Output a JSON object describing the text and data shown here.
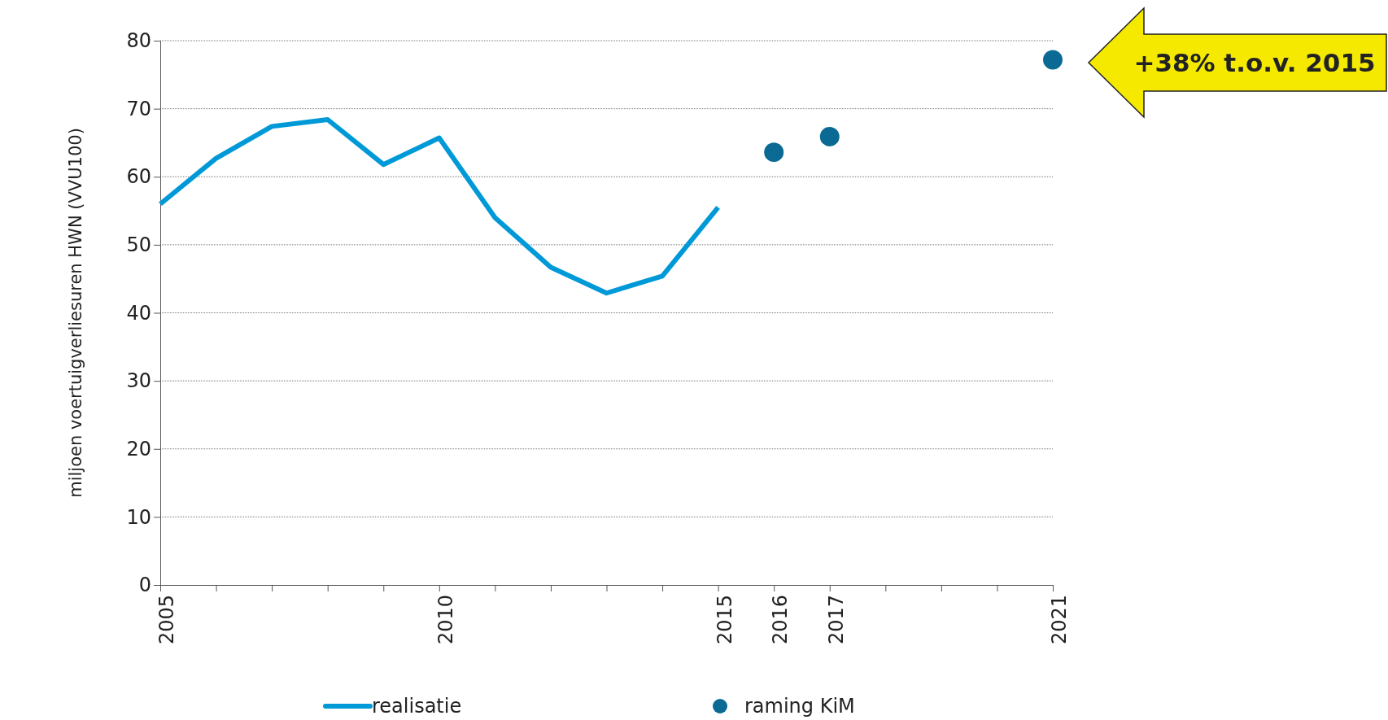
{
  "chart_data": {
    "type": "line",
    "ylabel": "miljoen voertuigverliesuren HWN (VVU100)",
    "xlim": [
      2005,
      2021
    ],
    "xticks": [
      2005,
      {
        "value": 2006,
        "label": null
      },
      {
        "value": 2007,
        "label": null
      },
      {
        "value": 2008,
        "label": null
      },
      {
        "value": 2009,
        "label": null
      },
      2010,
      {
        "value": 2011,
        "label": null
      },
      {
        "value": 2012,
        "label": null
      },
      {
        "value": 2013,
        "label": null
      },
      {
        "value": 2014,
        "label": null
      },
      2015,
      2016,
      2017,
      {
        "value": 2018,
        "label": null
      },
      {
        "value": 2019,
        "label": null
      },
      {
        "value": 2020,
        "label": null
      },
      2021
    ],
    "ylim": [
      0,
      80
    ],
    "yticks": [
      0,
      10,
      20,
      30,
      40,
      50,
      60,
      70,
      80
    ],
    "grid": "y",
    "legend": "bottom",
    "series": [
      {
        "name": "realisatie",
        "color": "#0099d8",
        "marker": "none",
        "line_style": "solid",
        "x": [
          2005,
          2006,
          2007,
          2008,
          2009,
          2010,
          2011,
          2012,
          2013,
          2014,
          2015
        ],
        "values": [
          56.0,
          62.7,
          67.4,
          68.4,
          61.8,
          65.7,
          54.0,
          46.7,
          42.9,
          45.4,
          55.5
        ]
      },
      {
        "name": "raming KiM",
        "type": "scatter",
        "color": "#0a6a94",
        "marker": "circle",
        "x": [
          2016,
          2017,
          2021
        ],
        "values": [
          63.6,
          65.9,
          77.2
        ]
      }
    ],
    "annotations": [
      "+38% t.o.v. 2015"
    ]
  }
}
